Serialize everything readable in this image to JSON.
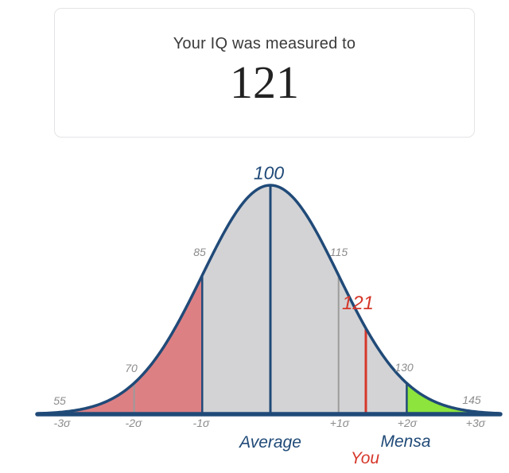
{
  "result_card": {
    "title": "Your IQ was measured to",
    "score": "121"
  },
  "chart_data": {
    "type": "area",
    "title": "IQ normal distribution bell curve",
    "distribution": "normal",
    "mean": 100,
    "sd": 15,
    "user_score": 121,
    "user_score_label": "121",
    "iq_point_labels": [
      "55",
      "70",
      "85",
      "100",
      "115",
      "130",
      "145"
    ],
    "sigma_tick_labels": [
      "-3σ",
      "-2σ",
      "-1σ",
      "+1σ",
      "+2σ",
      "+3σ"
    ],
    "annotations": {
      "average": "Average",
      "mensa": "Mensa",
      "you": "You"
    },
    "regions": [
      {
        "name": "below-minus-1-sigma",
        "from_sigma": -3.6,
        "to_sigma": -1,
        "color": "#dd8084"
      },
      {
        "name": "minus-1-to-plus-2-sigma",
        "from_sigma": -1,
        "to_sigma": 2,
        "color": "#d3d3d5"
      },
      {
        "name": "above-plus-2-sigma-mensa",
        "from_sigma": 2,
        "to_sigma": 3.6,
        "color": "#8ce43c"
      }
    ],
    "dividers": [
      {
        "sigma": -2,
        "style": "minor"
      },
      {
        "sigma": -1,
        "style": "major"
      },
      {
        "sigma": 0,
        "style": "center"
      },
      {
        "sigma": 1,
        "style": "minor"
      },
      {
        "sigma": 2,
        "style": "major"
      }
    ],
    "colors": {
      "curve": "#204a78",
      "baseline": "#204a78",
      "minor_line": "#9b9b9b",
      "major_line": "#204a78",
      "user_line": "#d6372a",
      "label_gray": "#8c8c8c",
      "label_navy": "#204a78",
      "label_red": "#d6372a"
    }
  }
}
